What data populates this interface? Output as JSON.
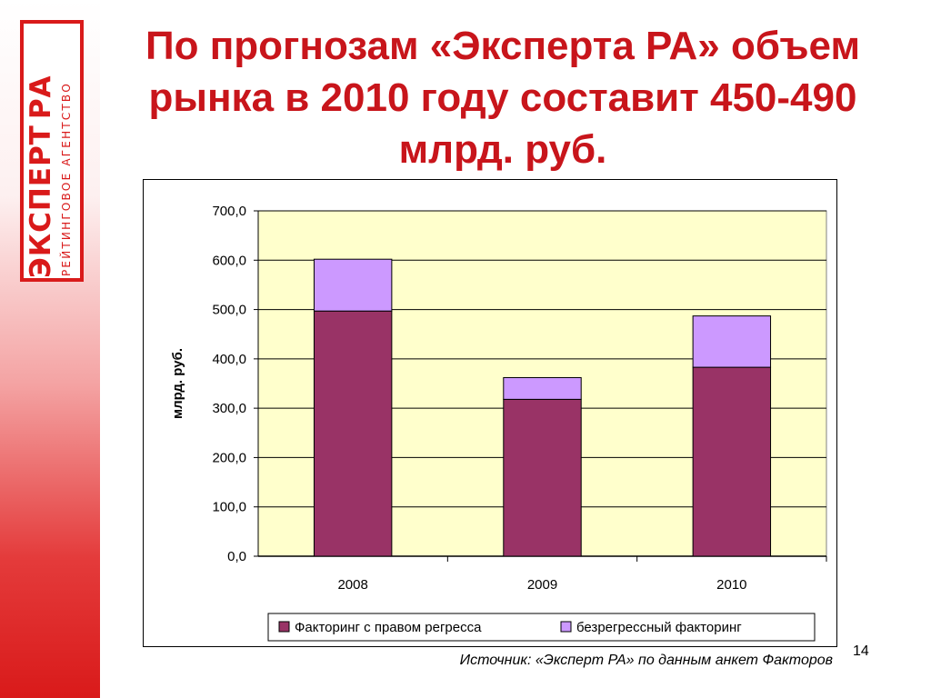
{
  "logo": {
    "main_text": "ЭКСПЕРТ",
    "ra_text": "РА",
    "sub_text": "РЕЙТИНГОВОЕ АГЕНТСТВО",
    "brand_color": "#d91a1a"
  },
  "slide": {
    "title_line1": "По прогнозам «Эксперта РА» объем",
    "title_line2": "рынка в 2010 году составит 450-490",
    "title_line3": "млрд. руб.",
    "title_color": "#c8151b",
    "source": "Источник: «Эксперт РА» по данным анкет Факторов",
    "page_number": "14"
  },
  "chart_data": {
    "type": "bar",
    "stacked": true,
    "categories": [
      "2008",
      "2009",
      "2010"
    ],
    "series": [
      {
        "name": "Факторинг с правом регресса",
        "values": [
          497,
          318,
          383
        ],
        "color": "#993366"
      },
      {
        "name": "безрегрессный факторинг",
        "values": [
          105,
          44,
          104
        ],
        "color": "#cc99ff"
      }
    ],
    "ylabel": "млрд. руб.",
    "ylim": [
      0,
      700
    ],
    "yticks": [
      0,
      100,
      200,
      300,
      400,
      500,
      600,
      700
    ],
    "ytick_labels": [
      "0,0",
      "100,0",
      "200,0",
      "300,0",
      "400,0",
      "500,0",
      "600,0",
      "700,0"
    ],
    "plot_background": "#ffffcc",
    "grid": true,
    "legend_position": "bottom"
  }
}
